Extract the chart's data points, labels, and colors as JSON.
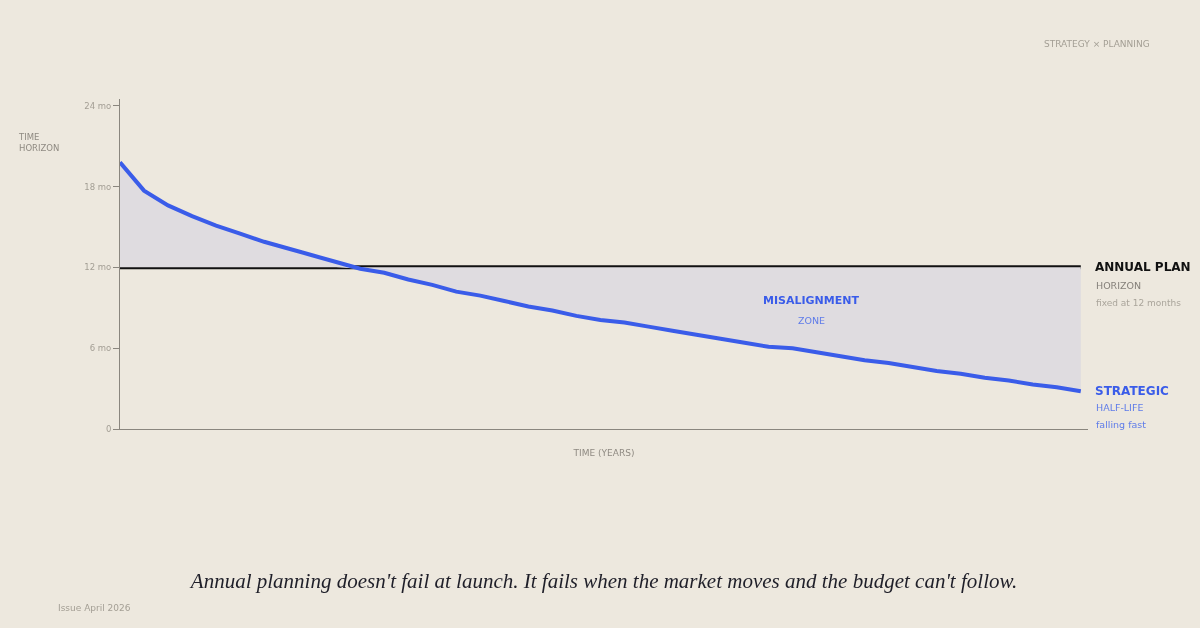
{
  "chart_data": {
    "type": "line",
    "title": "Annual planning doesn't fail at launch. It fails when the market moves and the budget can't follow.",
    "xlabel": "TIME (YEARS)",
    "ylabel": "TIME\nHORIZON",
    "categories": [
      null,
      null,
      null,
      null,
      null,
      null,
      null,
      null,
      null,
      null,
      null,
      null,
      null,
      null,
      null,
      null,
      null,
      null,
      null,
      null,
      null,
      null,
      null,
      null,
      null,
      null,
      null,
      null,
      null,
      null,
      null,
      null,
      null,
      null,
      null,
      null,
      null,
      null,
      null,
      null,
      null
    ],
    "series": [
      {
        "name": "STRATEGIC",
        "color": "#3a5ce9",
        "values": [
          19.8,
          17.7,
          16.6,
          15.8,
          15.1,
          14.5,
          13.9,
          13.4,
          12.9,
          12.4,
          11.9,
          11.6,
          11.1,
          10.7,
          10.2,
          9.9,
          9.5,
          9.1,
          8.8,
          8.4,
          8.1,
          7.9,
          7.6,
          7.3,
          7.0,
          6.7,
          6.4,
          6.1,
          6.0,
          5.7,
          5.4,
          5.1,
          4.9,
          4.6,
          4.3,
          4.1,
          3.8,
          3.6,
          3.3,
          3.1,
          2.8
        ],
        "lower": [
          12,
          12,
          12,
          12,
          12,
          12,
          12,
          12,
          12,
          12,
          11.9,
          11.6,
          11.1,
          10.7,
          10.2,
          9.9,
          9.5,
          9.1,
          8.8,
          8.4,
          8.1,
          7.9,
          7.6,
          7.3,
          7.0,
          6.7,
          6.4,
          6.1,
          6.0,
          5.7,
          5.4,
          5.1,
          4.9,
          4.6,
          4.3,
          4.1,
          3.8,
          3.6,
          3.3,
          3.1,
          2.8
        ],
        "upper": [
          19.8,
          17.7,
          16.6,
          15.8,
          15.1,
          14.5,
          13.9,
          13.4,
          12.9,
          12.4,
          12,
          12,
          12,
          12,
          12,
          12,
          12,
          12,
          12,
          12,
          12,
          12,
          12,
          12,
          12,
          12,
          12,
          12,
          12,
          12,
          12,
          12,
          12,
          12,
          12,
          12,
          12,
          12,
          12,
          12,
          12
        ]
      }
    ],
    "ylim": [
      0,
      24.5
    ],
    "yticks": [
      0,
      {
        "value": 6,
        "label": "6 mo"
      },
      {
        "value": 12,
        "label": "12 mo"
      },
      {
        "value": 18,
        "label": "18 mo"
      },
      {
        "value": 24,
        "label": "24 mo"
      }
    ],
    "ref_lines": [
      {
        "axis": "y",
        "value": 12,
        "label": "ANNUAL PLAN",
        "color": "#111111",
        "line_style": "solid"
      }
    ],
    "annotations": [
      "HORIZON",
      "fixed at 12 months",
      "MISALIGNMENT",
      "ZONE",
      "HALF-LIFE",
      "falling fast",
      "STRATEGY × PLANNING",
      "Issue April 2026"
    ],
    "grid": false,
    "legend": false,
    "marker": "none",
    "line_style": "solid"
  }
}
